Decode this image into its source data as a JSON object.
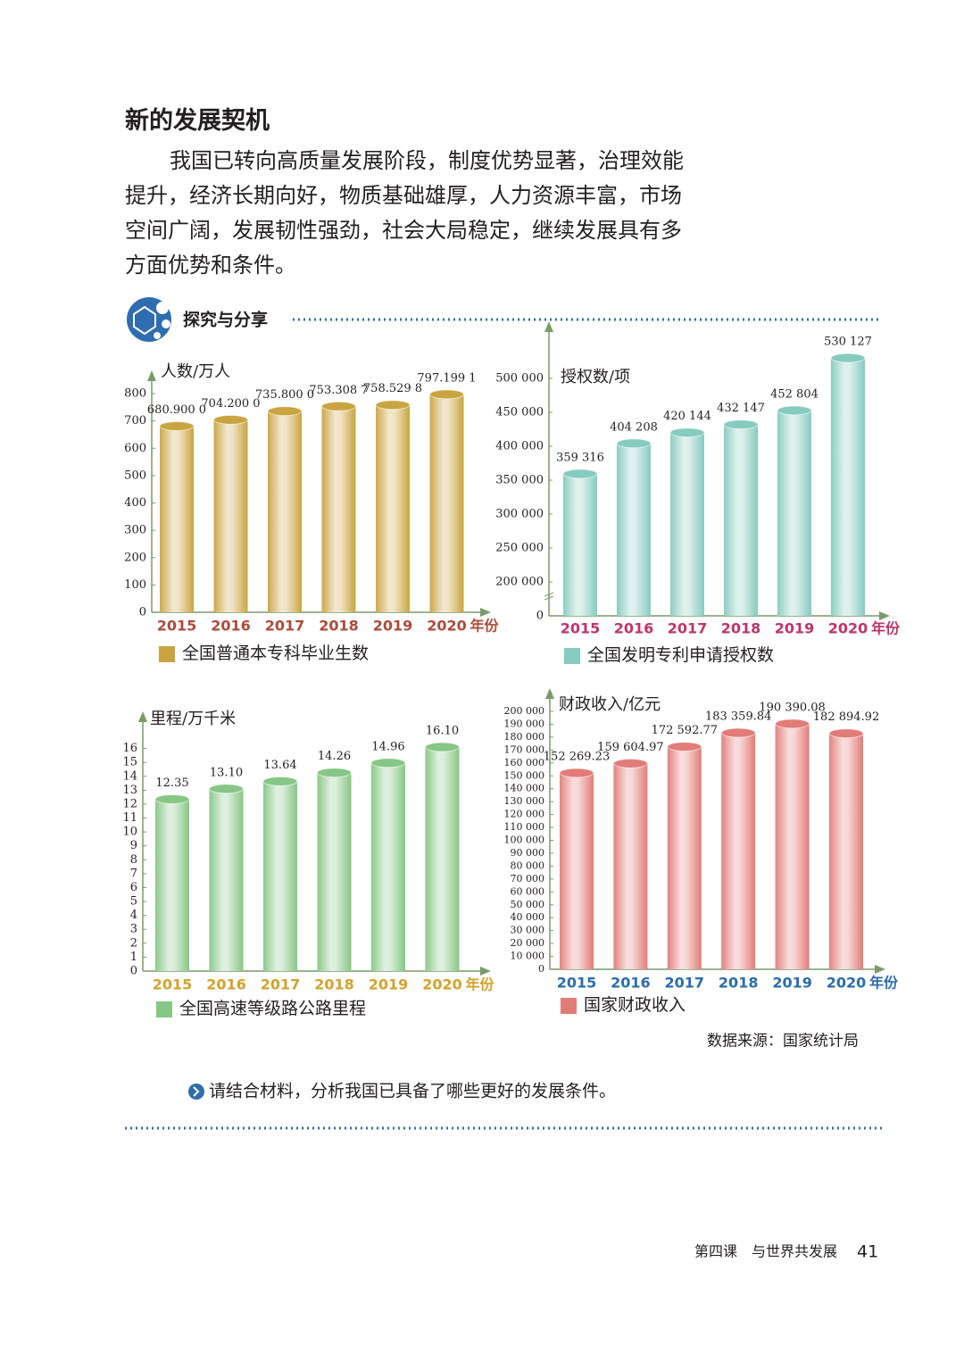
{
  "header": {
    "title": "新的发展契机"
  },
  "paragraph_lines": [
    "我国已转向高质量发展阶段，制度优势显著，治理效能",
    "提升，经济长期向好，物质基础雄厚，人力资源丰富，市场",
    "空间广阔，发展韧性强劲，社会大局稳定，继续发展具有多",
    "方面优势和条件。"
  ],
  "section": {
    "title": "探究与分享"
  },
  "chart_data": [
    {
      "type": "bar",
      "ylabel": "人数/万人",
      "xlabel": "年份",
      "legend": "全国普通本专科毕业生数",
      "color": "#c9a440",
      "xtick_color": "#b04a3a",
      "categories": [
        "2015",
        "2016",
        "2017",
        "2018",
        "2019",
        "2020"
      ],
      "values": [
        680.9,
        704.2,
        735.8,
        753.3087,
        758.5298,
        797.1991
      ],
      "value_labels": [
        "680.900 0",
        "704.200 0",
        "735.800 0",
        "753.308 7",
        "758.529 8",
        "797.199 1"
      ],
      "ylim": [
        0,
        800
      ],
      "yticks": [
        0,
        100,
        200,
        300,
        400,
        500,
        600,
        700,
        800
      ]
    },
    {
      "type": "bar",
      "ylabel": "授权数/项",
      "xlabel": "年份",
      "legend": "全国发明专利申请授权数",
      "color": "#86cbbf",
      "xtick_color": "#c0336b",
      "categories": [
        "2015",
        "2016",
        "2017",
        "2018",
        "2019",
        "2020"
      ],
      "values": [
        359316,
        404208,
        420144,
        432147,
        452804,
        530127
      ],
      "value_labels": [
        "359 316",
        "404 208",
        "420 144",
        "432 147",
        "452 804",
        "530 127"
      ],
      "ylim": [
        150000,
        550000
      ],
      "ybreak": [
        0,
        150000
      ],
      "yticks": [
        0,
        {
          "value": 200000,
          "label": "200 000"
        },
        {
          "value": 250000,
          "label": "250 000"
        },
        {
          "value": 300000,
          "label": "300 000"
        },
        {
          "value": 350000,
          "label": "350 000"
        },
        {
          "value": 400000,
          "label": "400 000"
        },
        {
          "value": 450000,
          "label": "450 000"
        },
        {
          "value": 500000,
          "label": "500 000"
        }
      ]
    },
    {
      "type": "bar",
      "ylabel": "里程/万千米",
      "xlabel": "年份",
      "legend": "全国高速等级路公路里程",
      "color": "#86c686",
      "xtick_color": "#d4a22a",
      "categories": [
        "2015",
        "2016",
        "2017",
        "2018",
        "2019",
        "2020"
      ],
      "values": [
        12.35,
        13.1,
        13.64,
        14.26,
        14.96,
        16.1
      ],
      "value_labels": [
        "12.35",
        "13.10",
        "13.64",
        "14.26",
        "14.96",
        "16.10"
      ],
      "ylim": [
        0,
        17
      ],
      "yticks": [
        0,
        1,
        2,
        3,
        4,
        5,
        6,
        7,
        8,
        9,
        10,
        11,
        12,
        13,
        14,
        15,
        16
      ]
    },
    {
      "type": "bar",
      "ylabel": "财政收入/亿元",
      "xlabel": "年份",
      "legend": "国家财政收入",
      "color": "#e27c78",
      "xtick_color": "#2b6cb0",
      "categories": [
        "2015",
        "2016",
        "2017",
        "2018",
        "2019",
        "2020"
      ],
      "values": [
        152269.23,
        159604.97,
        172592.77,
        183359.84,
        190390.08,
        182894.92
      ],
      "value_labels": [
        "152 269.23",
        "159 604.97",
        "172 592.77",
        "183 359.84",
        "190 390.08",
        "182 894.92"
      ],
      "ylim": [
        0,
        200000
      ],
      "yticks": [
        0,
        {
          "value": 10000,
          "label": "10 000"
        },
        {
          "value": 20000,
          "label": "20 000"
        },
        {
          "value": 30000,
          "label": "30 000"
        },
        {
          "value": 40000,
          "label": "40 000"
        },
        {
          "value": 50000,
          "label": "50 000"
        },
        {
          "value": 60000,
          "label": "60 000"
        },
        {
          "value": 70000,
          "label": "70 000"
        },
        {
          "value": 80000,
          "label": "80 000"
        },
        {
          "value": 90000,
          "label": "90 000"
        },
        {
          "value": 100000,
          "label": "100 000"
        },
        {
          "value": 110000,
          "label": "110 000"
        },
        {
          "value": 120000,
          "label": "120 000"
        },
        {
          "value": 130000,
          "label": "130 000"
        },
        {
          "value": 140000,
          "label": "140 000"
        },
        {
          "value": 150000,
          "label": "150 000"
        },
        {
          "value": 160000,
          "label": "160 000"
        },
        {
          "value": 170000,
          "label": "170 000"
        },
        {
          "value": 180000,
          "label": "180 000"
        },
        {
          "value": 190000,
          "label": "190 000"
        },
        {
          "value": 200000,
          "label": "200 000"
        }
      ]
    }
  ],
  "source": "数据来源：国家统计局",
  "question": "请结合材料，分析我国已具备了哪些更好的发展条件。",
  "footer": {
    "lesson": "第四课　与世界共发展",
    "page": "41"
  }
}
